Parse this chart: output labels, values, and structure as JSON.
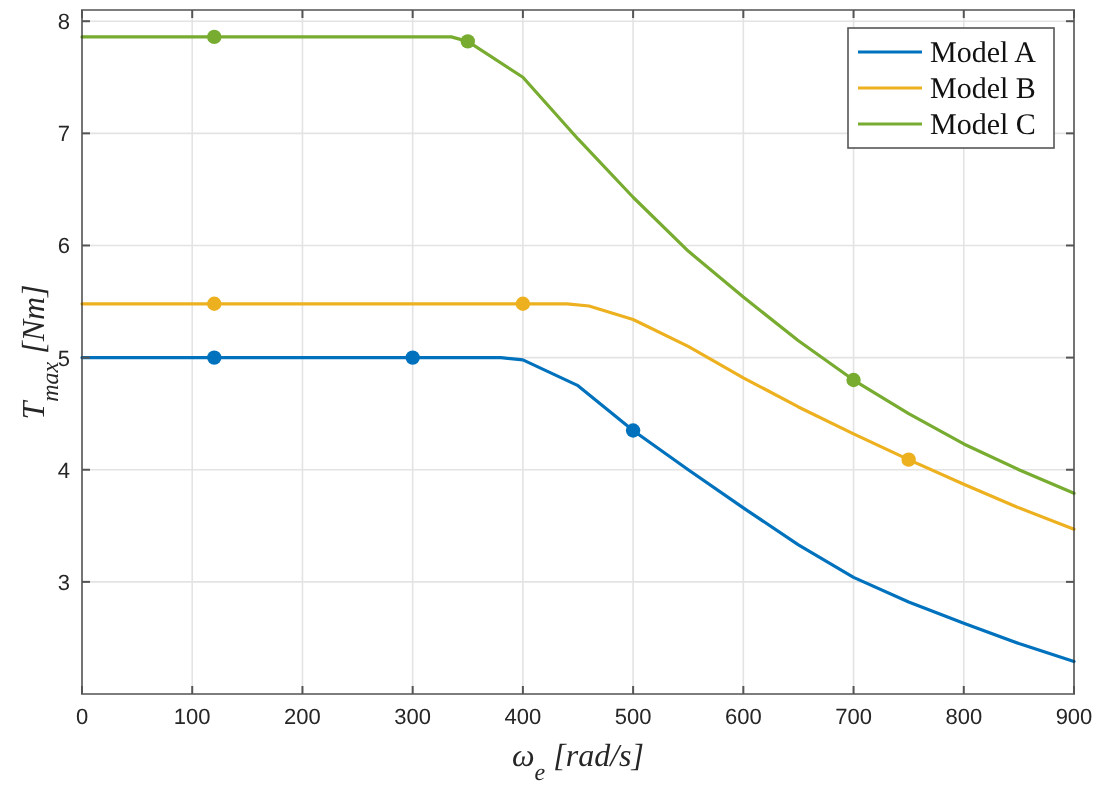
{
  "chart_data": {
    "type": "line",
    "xlabel": "ω$_{e}$ [rad/s]",
    "ylabel": "T$_{max}$ [Nm]",
    "xlim": [
      0,
      900
    ],
    "xticks": [
      0,
      100,
      200,
      300,
      400,
      500,
      600,
      700,
      800,
      900
    ],
    "ylim": [
      2,
      8.1
    ],
    "yticks": [
      3,
      4,
      5,
      6,
      7,
      8
    ],
    "grid": true,
    "legend": "top right",
    "line_style": "solid",
    "series": [
      {
        "name": "Model A",
        "color": "#0072bd",
        "x": [
          0,
          380,
          400,
          450,
          500,
          550,
          600,
          650,
          700,
          750,
          800,
          850,
          900
        ],
        "values": [
          5,
          5,
          4.98,
          4.75,
          4.35,
          4.0,
          3.66,
          3.33,
          3.04,
          2.82,
          2.63,
          2.45,
          2.29
        ]
      },
      {
        "name": "Model B",
        "color": "#edb120",
        "x": [
          0,
          440,
          460,
          500,
          550,
          600,
          650,
          700,
          750,
          800,
          850,
          900
        ],
        "values": [
          5.48,
          5.48,
          5.46,
          5.34,
          5.1,
          4.82,
          4.56,
          4.32,
          4.09,
          3.87,
          3.66,
          3.47
        ]
      },
      {
        "name": "Model C",
        "color": "#77ac30",
        "x": [
          0,
          335,
          350,
          400,
          450,
          500,
          550,
          600,
          650,
          700,
          750,
          800,
          850,
          900
        ],
        "values": [
          7.86,
          7.86,
          7.82,
          7.5,
          6.95,
          6.43,
          5.95,
          5.54,
          5.15,
          4.8,
          4.5,
          4.23,
          4.0,
          3.79
        ]
      },
      {
        "type": "scatter",
        "marker": "circle",
        "color": "#0072bd",
        "x": [
          120,
          300,
          500
        ],
        "values": [
          5,
          5,
          4.35
        ]
      },
      {
        "type": "scatter",
        "marker": "circle",
        "color": "#edb120",
        "x": [
          120,
          400,
          750
        ],
        "values": [
          5.48,
          5.48,
          4.09
        ]
      },
      {
        "type": "scatter",
        "marker": "circle",
        "color": "#77ac30",
        "x": [
          120,
          350,
          700
        ],
        "values": [
          7.86,
          7.82,
          4.8
        ]
      }
    ]
  }
}
